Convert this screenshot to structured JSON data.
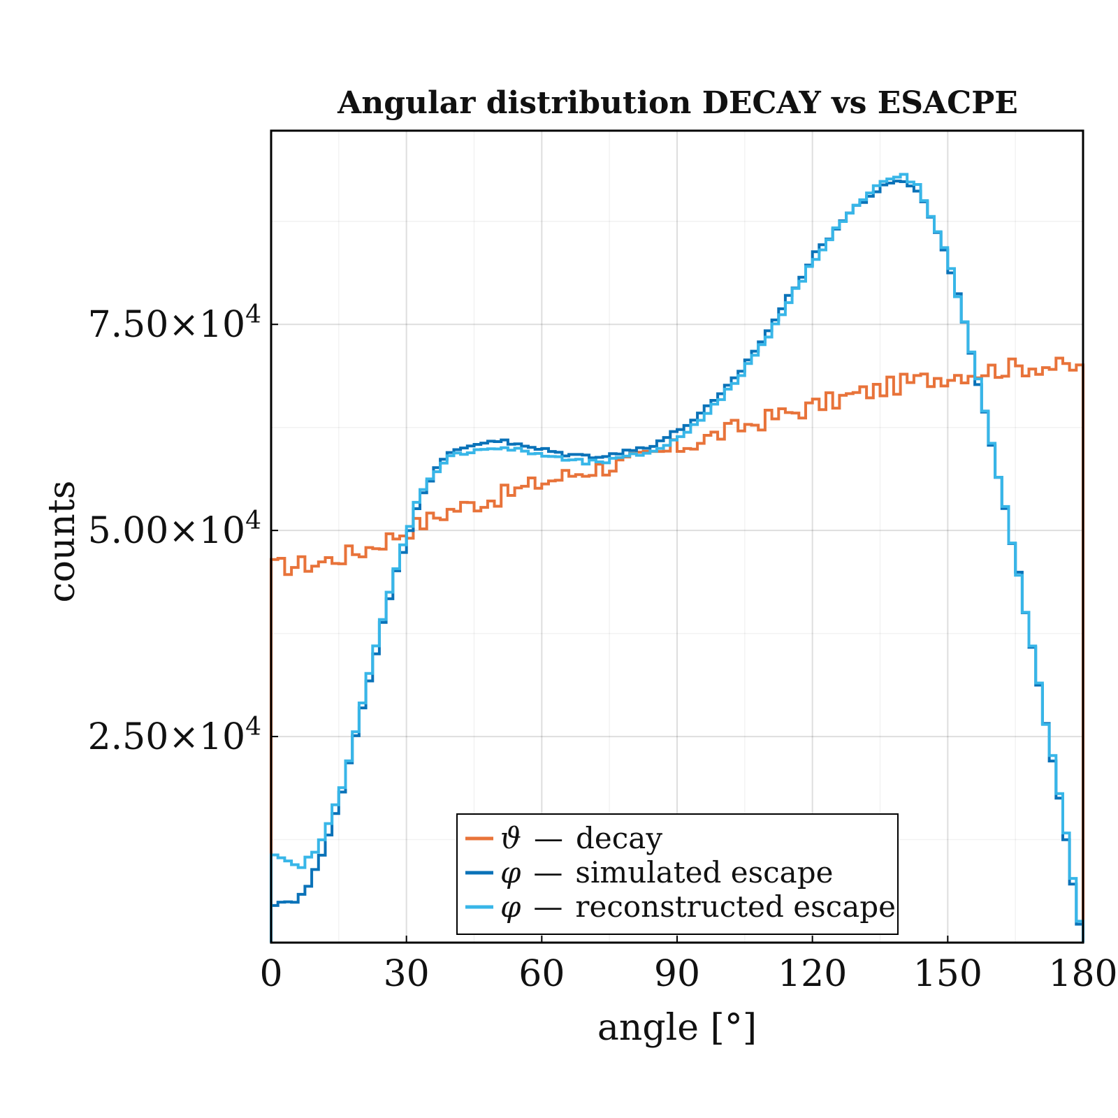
{
  "chart_data": {
    "type": "line",
    "title": "Angular distribution DECAY vs ESACPE",
    "xlabel": "angle [°]",
    "ylabel": "counts",
    "xlim": [
      0,
      180
    ],
    "ylim": [
      0,
      98500
    ],
    "x_ticks": [
      0,
      30,
      60,
      90,
      120,
      150,
      180
    ],
    "x_tick_labels": [
      "0",
      "30",
      "60",
      "90",
      "120",
      "150",
      "180"
    ],
    "y_ticks": [
      25000,
      50000,
      75000
    ],
    "y_tick_mantissas": [
      "2.50",
      "5.00",
      "7.50"
    ],
    "y_tick_times": "×",
    "y_tick_base": "10",
    "y_tick_exponent": "4",
    "grid": true,
    "legend_position": "bottom-center",
    "step_style": "histogram steps, bin width 1.5",
    "series": [
      {
        "name_symbol": "ϑ",
        "name_sep": "—",
        "name_text": "decay",
        "color": "#E8733A",
        "knots": [
          [
            0,
            45500
          ],
          [
            10,
            46000
          ],
          [
            20,
            47500
          ],
          [
            30,
            50000
          ],
          [
            40,
            52500
          ],
          [
            50,
            54000
          ],
          [
            60,
            55800
          ],
          [
            70,
            57300
          ],
          [
            80,
            58300
          ],
          [
            90,
            60000
          ],
          [
            100,
            61800
          ],
          [
            110,
            63500
          ],
          [
            120,
            65000
          ],
          [
            130,
            66500
          ],
          [
            140,
            67800
          ],
          [
            150,
            68800
          ],
          [
            160,
            69500
          ],
          [
            170,
            70000
          ],
          [
            180,
            69600
          ]
        ],
        "noise": 1200
      },
      {
        "name_symbol": "φ",
        "name_sep": "—",
        "name_text": "simulated escape",
        "color": "#0A72B8",
        "knots": [
          [
            0,
            2000
          ],
          [
            1,
            5000
          ],
          [
            5,
            5000
          ],
          [
            8,
            6500
          ],
          [
            12,
            11500
          ],
          [
            16,
            19000
          ],
          [
            20,
            28000
          ],
          [
            24,
            37000
          ],
          [
            27,
            43500
          ],
          [
            30,
            49000
          ],
          [
            33,
            54000
          ],
          [
            36,
            57000
          ],
          [
            40,
            59500
          ],
          [
            45,
            60500
          ],
          [
            50,
            61000
          ],
          [
            55,
            60300
          ],
          [
            60,
            59800
          ],
          [
            65,
            59300
          ],
          [
            70,
            59000
          ],
          [
            75,
            59200
          ],
          [
            80,
            59700
          ],
          [
            85,
            60500
          ],
          [
            90,
            62000
          ],
          [
            95,
            64000
          ],
          [
            100,
            66500
          ],
          [
            105,
            70000
          ],
          [
            110,
            74000
          ],
          [
            115,
            78500
          ],
          [
            120,
            83000
          ],
          [
            125,
            86500
          ],
          [
            130,
            89500
          ],
          [
            135,
            91500
          ],
          [
            140,
            92500
          ],
          [
            143,
            91500
          ],
          [
            146,
            88500
          ],
          [
            150,
            83000
          ],
          [
            154,
            75000
          ],
          [
            157,
            67000
          ],
          [
            160,
            60000
          ],
          [
            163,
            52000
          ],
          [
            166,
            44000
          ],
          [
            169,
            35000
          ],
          [
            172,
            26000
          ],
          [
            175,
            17000
          ],
          [
            177,
            10000
          ],
          [
            179,
            3000
          ],
          [
            180,
            500
          ]
        ],
        "noise": 300
      },
      {
        "name_symbol": "φ",
        "name_sep": "—",
        "name_text": "reconstructed escape",
        "color": "#38B6E8",
        "knots": [
          [
            0,
            10500
          ],
          [
            3,
            10000
          ],
          [
            6,
            9000
          ],
          [
            9,
            10500
          ],
          [
            12,
            13000
          ],
          [
            16,
            19500
          ],
          [
            20,
            28500
          ],
          [
            24,
            37500
          ],
          [
            27,
            44000
          ],
          [
            30,
            49500
          ],
          [
            33,
            54500
          ],
          [
            36,
            57000
          ],
          [
            40,
            59000
          ],
          [
            45,
            59800
          ],
          [
            50,
            60000
          ],
          [
            55,
            59700
          ],
          [
            60,
            59200
          ],
          [
            65,
            58600
          ],
          [
            70,
            58200
          ],
          [
            75,
            58400
          ],
          [
            80,
            59000
          ],
          [
            85,
            59700
          ],
          [
            90,
            61000
          ],
          [
            95,
            63500
          ],
          [
            100,
            66000
          ],
          [
            105,
            69500
          ],
          [
            110,
            73500
          ],
          [
            115,
            78000
          ],
          [
            120,
            82500
          ],
          [
            125,
            86500
          ],
          [
            130,
            89500
          ],
          [
            135,
            92000
          ],
          [
            140,
            93200
          ],
          [
            143,
            92000
          ],
          [
            146,
            88500
          ],
          [
            150,
            83000
          ],
          [
            154,
            75000
          ],
          [
            157,
            67500
          ],
          [
            160,
            60000
          ],
          [
            163,
            52000
          ],
          [
            166,
            44000
          ],
          [
            169,
            35000
          ],
          [
            172,
            26000
          ],
          [
            175,
            17500
          ],
          [
            177,
            10500
          ],
          [
            179,
            3000
          ],
          [
            180,
            500
          ]
        ],
        "noise": 300
      }
    ]
  }
}
